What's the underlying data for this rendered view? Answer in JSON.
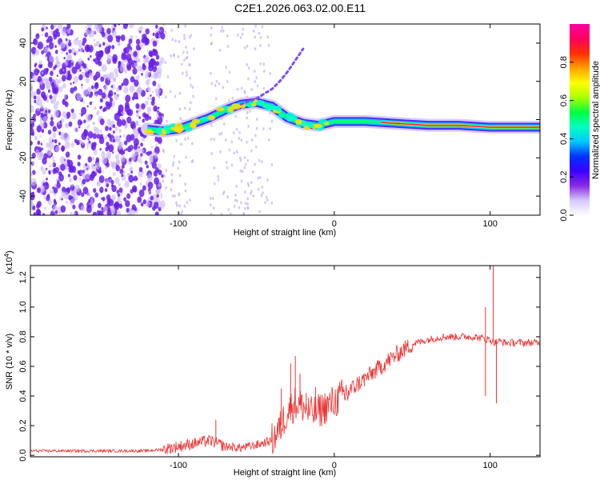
{
  "title": "C2E1.2026.063.02.00.E11",
  "chart_data": [
    {
      "type": "heatmap",
      "xlabel": "Height of straight line (km)",
      "ylabel": "Frequency (Hz)",
      "xlim": [
        -195,
        132
      ],
      "ylim": [
        -50,
        50
      ],
      "xticks": [
        -100,
        0,
        100
      ],
      "yticks": [
        -40,
        -20,
        0,
        20,
        40
      ],
      "colorbar": {
        "label": "Normalized spectral amplitude",
        "range": [
          0,
          1
        ],
        "ticks": [
          0.0,
          0.2,
          0.4,
          0.6,
          0.8
        ],
        "colors": [
          "#ffffff",
          "#d8c8ff",
          "#8a2be2",
          "#3a00ff",
          "#0033ff",
          "#00c8ff",
          "#00ffc0",
          "#00ff40",
          "#aaff00",
          "#ffff00",
          "#ffa000",
          "#ff3000",
          "#ff0060",
          "#ff00a0"
        ]
      },
      "ridge": {
        "x": [
          -120,
          -110,
          -100,
          -90,
          -80,
          -70,
          -60,
          -50,
          -40,
          -30,
          -20,
          -10,
          0,
          20,
          40,
          60,
          80,
          100,
          120,
          132
        ],
        "y": [
          -5,
          -6,
          -5,
          -2,
          1,
          5,
          8,
          9,
          7,
          1,
          -2,
          -3,
          -1,
          -1,
          -2,
          -3,
          -3,
          -4,
          -4,
          -4
        ]
      },
      "branch": {
        "x": [
          -60,
          -50,
          -40,
          -35,
          -30,
          -25,
          -20
        ],
        "y": [
          8,
          11,
          16,
          20,
          25,
          31,
          37
        ]
      }
    },
    {
      "type": "line",
      "xlabel": "Height of straight line (km)",
      "ylabel": "SNR (10 * v/v)",
      "y_multiplier": "(x10",
      "y_exponent": "4",
      "y_multiplier_close": ")",
      "xlim": [
        -195,
        132
      ],
      "ylim": [
        -0.01,
        1.28
      ],
      "xticks": [
        -100,
        0,
        100
      ],
      "yticks": [
        0.0,
        0.2,
        0.4,
        0.6,
        0.8,
        1.0,
        1.2
      ],
      "series": [
        {
          "name": "SNR",
          "color": "#ee3333",
          "x": [
            -195,
            -150,
            -120,
            -110,
            -100,
            -90,
            -80,
            -70,
            -60,
            -50,
            -40,
            -35,
            -30,
            -25,
            -20,
            -15,
            -10,
            0,
            10,
            20,
            30,
            40,
            50,
            60,
            70,
            80,
            90,
            95,
            100,
            103,
            105,
            110,
            120,
            132
          ],
          "y": [
            0.03,
            0.03,
            0.03,
            0.04,
            0.06,
            0.08,
            0.1,
            0.06,
            0.05,
            0.07,
            0.1,
            0.18,
            0.3,
            0.35,
            0.33,
            0.28,
            0.3,
            0.36,
            0.44,
            0.52,
            0.6,
            0.68,
            0.75,
            0.78,
            0.8,
            0.8,
            0.8,
            0.79,
            0.78,
            0.76,
            0.77,
            0.76,
            0.76,
            0.76
          ],
          "spikes": [
            {
              "x": -76,
              "y": 0.24
            },
            {
              "x": -34,
              "y": 0.45
            },
            {
              "x": -28,
              "y": 0.62
            },
            {
              "x": -25,
              "y": 0.67
            },
            {
              "x": -22,
              "y": 0.55
            },
            {
              "x": -18,
              "y": 0.42
            },
            {
              "x": -12,
              "y": 0.46
            },
            {
              "x": 97,
              "y": 1.0
            },
            {
              "x": 97,
              "y": 0.4
            },
            {
              "x": 102,
              "y": 1.28
            },
            {
              "x": 104,
              "y": 0.35
            }
          ]
        }
      ]
    }
  ]
}
